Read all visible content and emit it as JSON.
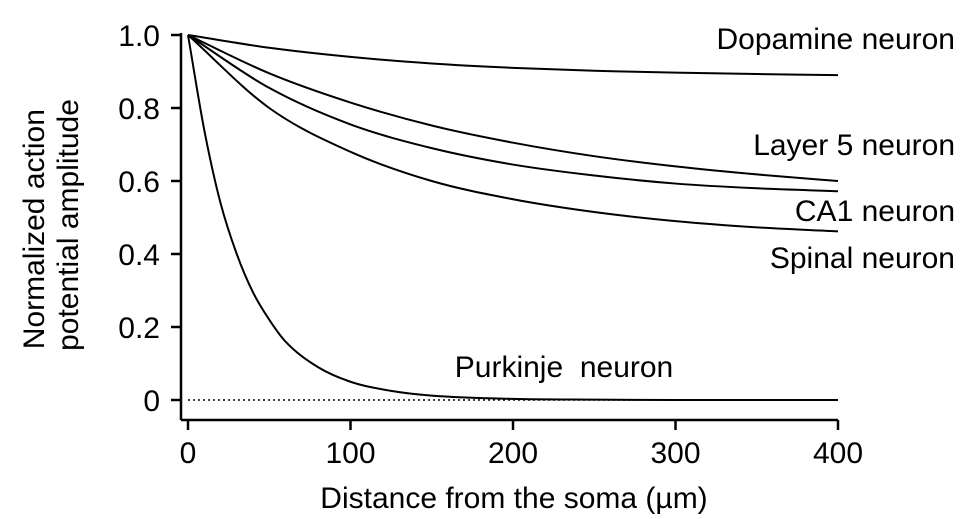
{
  "chart_data": {
    "type": "line",
    "xlabel": "Distance from the soma (µm)",
    "ylabel_lines": [
      "Normalized action",
      "potential amplitude"
    ],
    "xlim": [
      0,
      400
    ],
    "ylim": [
      0,
      1.0
    ],
    "x_ticks": [
      {
        "value": 0,
        "label": "0"
      },
      {
        "value": 100,
        "label": "100"
      },
      {
        "value": 200,
        "label": "200"
      },
      {
        "value": 300,
        "label": "300"
      },
      {
        "value": 400,
        "label": "400"
      }
    ],
    "y_ticks": [
      {
        "value": 0,
        "label": "0"
      },
      {
        "value": 0.2,
        "label": "0.2"
      },
      {
        "value": 0.4,
        "label": "0.4"
      },
      {
        "value": 0.6,
        "label": "0.6"
      },
      {
        "value": 0.8,
        "label": "0.8"
      },
      {
        "value": 1.0,
        "label": "1.0"
      }
    ],
    "baseline": {
      "y": 0,
      "style": "dotted"
    },
    "grid": false,
    "series": [
      {
        "name": "Dopamine neuron",
        "x": [
          0,
          50,
          100,
          150,
          200,
          250,
          300,
          350,
          400
        ],
        "y": [
          1.0,
          0.965,
          0.94,
          0.922,
          0.91,
          0.902,
          0.897,
          0.893,
          0.89
        ]
      },
      {
        "name": "Layer 5 neuron",
        "x": [
          0,
          50,
          100,
          150,
          200,
          250,
          300,
          350,
          400
        ],
        "y": [
          1.0,
          0.895,
          0.815,
          0.752,
          0.705,
          0.668,
          0.64,
          0.618,
          0.6
        ]
      },
      {
        "name": "CA1 neuron",
        "x": [
          0,
          50,
          100,
          150,
          200,
          250,
          300,
          350,
          400
        ],
        "y": [
          1.0,
          0.855,
          0.755,
          0.69,
          0.645,
          0.615,
          0.593,
          0.58,
          0.572
        ]
      },
      {
        "name": "Spinal neuron",
        "x": [
          0,
          50,
          100,
          150,
          200,
          250,
          300,
          350,
          400
        ],
        "y": [
          1.0,
          0.8,
          0.68,
          0.6,
          0.55,
          0.515,
          0.49,
          0.473,
          0.462
        ]
      },
      {
        "name": "Purkinje  neuron",
        "x": [
          0,
          10,
          20,
          30,
          40,
          50,
          60,
          80,
          100,
          125,
          150,
          200,
          250,
          300,
          400
        ],
        "y": [
          1.0,
          0.74,
          0.54,
          0.4,
          0.295,
          0.22,
          0.16,
          0.09,
          0.05,
          0.025,
          0.012,
          0.003,
          0.001,
          0.0,
          0.0
        ]
      }
    ]
  }
}
